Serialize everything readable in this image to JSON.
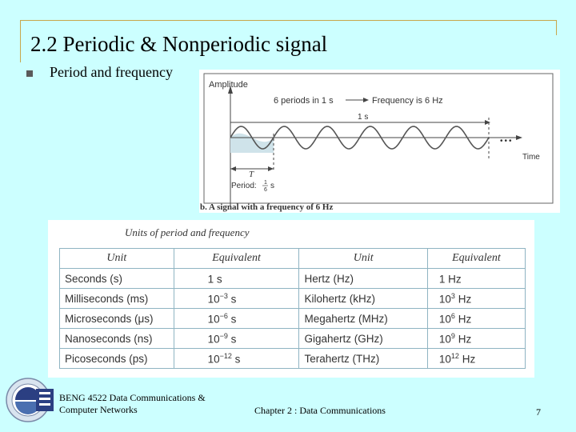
{
  "slide": {
    "title": "2.2 Periodic & Nonperiodic signal",
    "bullet": "Period and frequency"
  },
  "figure_b": {
    "amplitude_label": "Amplitude",
    "periods_text": "6 periods in 1 s",
    "frequency_text": "Frequency is 6 Hz",
    "one_second": "1 s",
    "time_label": "Time",
    "t_label": "T",
    "period_label": "Period:",
    "period_num": "1",
    "period_den": "6",
    "period_unit": "s",
    "ellipsis": "•••",
    "caption": "b. A signal with a frequency of 6 Hz"
  },
  "units": {
    "caption": "Units of period and frequency",
    "headers": [
      "Unit",
      "Equivalent",
      "Unit",
      "Equivalent"
    ],
    "rows": [
      {
        "unit": "Seconds (s)",
        "eq_base": "1 s",
        "eq_exp": "",
        "eq_suffix": "",
        "funit": "Hertz (Hz)",
        "feq_base": "1 Hz",
        "feq_exp": "",
        "feq_suffix": ""
      },
      {
        "unit": "Milliseconds (ms)",
        "eq_base": "10",
        "eq_exp": "−3",
        "eq_suffix": " s",
        "funit": "Kilohertz (kHz)",
        "feq_base": "10",
        "feq_exp": "3",
        "feq_suffix": " Hz"
      },
      {
        "unit": "Microseconds (μs)",
        "eq_base": "10",
        "eq_exp": "−6",
        "eq_suffix": " s",
        "funit": "Megahertz (MHz)",
        "feq_base": "10",
        "feq_exp": "6",
        "feq_suffix": " Hz"
      },
      {
        "unit": "Nanoseconds (ns)",
        "eq_base": "10",
        "eq_exp": "−9",
        "eq_suffix": " s",
        "funit": "Gigahertz (GHz)",
        "feq_base": "10",
        "feq_exp": "9",
        "feq_suffix": " Hz"
      },
      {
        "unit": "Picoseconds (ps)",
        "eq_base": "10",
        "eq_exp": "−12",
        "eq_suffix": " s",
        "funit": "Terahertz (THz)",
        "feq_base": "10",
        "feq_exp": "12",
        "feq_suffix": " Hz"
      }
    ]
  },
  "footer": {
    "left_line1": "BENG 4522 Data Communications &",
    "left_line2": "Computer Networks",
    "center": "Chapter 2 : Data Communications",
    "page": "7"
  },
  "colors": {
    "background": "#ccffff",
    "frame": "#c8a64b",
    "wave_fill": "#cfe3ea"
  }
}
